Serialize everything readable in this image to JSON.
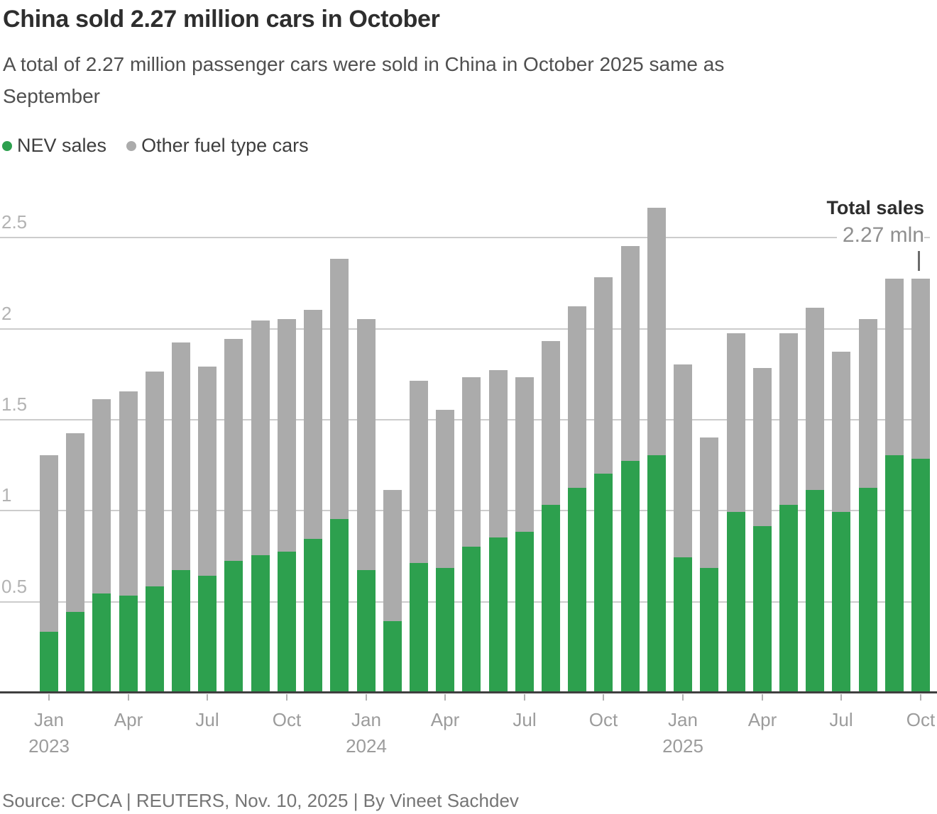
{
  "header": {
    "title": "China sold 2.27 million cars in October",
    "subtitle_lines": [
      "A total of 2.27 million passenger cars were sold in China in October 2025 same as",
      "September"
    ]
  },
  "colors": {
    "nev": "#2da04e",
    "other": "#ababab",
    "gridline": "#cccccc",
    "baseline": "#3f3f3f"
  },
  "legend": {
    "items": [
      {
        "label": "NEV sales",
        "color_key": "nev"
      },
      {
        "label": "Other fuel type cars",
        "color_key": "other"
      }
    ]
  },
  "annotation": {
    "label": "Total sales",
    "value": "2.27 mln"
  },
  "footer": {
    "source": "Source: CPCA | REUTERS, Nov. 10, 2025 | By Vineet Sachdev"
  },
  "chart_data": {
    "type": "bar",
    "stacked": true,
    "unit": "million vehicles",
    "title": "China sold 2.27 million cars in October",
    "xlabel": "",
    "ylabel": "",
    "grid": true,
    "legend_position": "top-left",
    "ylim": [
      0,
      2.71
    ],
    "y_ticks": [
      "0.5",
      "1",
      "1.5",
      "2",
      "2.5"
    ],
    "y_tick_values": [
      0.5,
      1,
      1.5,
      2,
      2.5
    ],
    "categories": [
      "Jan 2023",
      "Feb 2023",
      "Mar 2023",
      "Apr 2023",
      "May 2023",
      "Jun 2023",
      "Jul 2023",
      "Aug 2023",
      "Sep 2023",
      "Oct 2023",
      "Nov 2023",
      "Dec 2023",
      "Jan 2024",
      "Feb 2024",
      "Mar 2024",
      "Apr 2024",
      "May 2024",
      "Jun 2024",
      "Jul 2024",
      "Aug 2024",
      "Sep 2024",
      "Oct 2024",
      "Nov 2024",
      "Dec 2024",
      "Jan 2025",
      "Feb 2025",
      "Mar 2025",
      "Apr 2025",
      "May 2025",
      "Jun 2025",
      "Jul 2025",
      "Aug 2025",
      "Sep 2025",
      "Oct 2025"
    ],
    "series": [
      {
        "name": "NEV sales",
        "color": "#2da04e",
        "values": [
          0.33,
          0.44,
          0.54,
          0.53,
          0.58,
          0.67,
          0.64,
          0.72,
          0.75,
          0.77,
          0.84,
          0.95,
          0.67,
          0.39,
          0.71,
          0.68,
          0.8,
          0.85,
          0.88,
          1.03,
          1.12,
          1.2,
          1.27,
          1.3,
          0.74,
          0.68,
          0.99,
          0.91,
          1.03,
          1.11,
          0.99,
          1.12,
          1.3,
          1.28
        ]
      },
      {
        "name": "Other fuel type cars",
        "color": "#ababab",
        "values": [
          0.97,
          0.98,
          1.07,
          1.12,
          1.18,
          1.25,
          1.15,
          1.22,
          1.29,
          1.28,
          1.26,
          1.43,
          1.38,
          0.72,
          1.0,
          0.87,
          0.93,
          0.92,
          0.85,
          0.9,
          1.0,
          1.08,
          1.18,
          1.36,
          1.06,
          0.72,
          0.98,
          0.87,
          0.94,
          1.0,
          0.88,
          0.93,
          0.97,
          0.99
        ]
      }
    ],
    "totals": [
      1.3,
      1.42,
      1.61,
      1.65,
      1.76,
      1.92,
      1.79,
      1.94,
      2.04,
      2.05,
      2.1,
      2.38,
      2.05,
      1.11,
      1.71,
      1.55,
      1.73,
      1.77,
      1.73,
      1.93,
      2.12,
      2.28,
      2.45,
      2.66,
      1.8,
      1.4,
      1.97,
      1.78,
      1.97,
      2.11,
      1.87,
      2.05,
      2.27,
      2.27
    ],
    "x_ticks": [
      {
        "i": 0,
        "label": "Jan",
        "year": "2023"
      },
      {
        "i": 3,
        "label": "Apr"
      },
      {
        "i": 6,
        "label": "Jul"
      },
      {
        "i": 9,
        "label": "Oct"
      },
      {
        "i": 12,
        "label": "Jan",
        "year": "2024"
      },
      {
        "i": 15,
        "label": "Apr"
      },
      {
        "i": 18,
        "label": "Jul"
      },
      {
        "i": 21,
        "label": "Oct"
      },
      {
        "i": 24,
        "label": "Jan",
        "year": "2025"
      },
      {
        "i": 27,
        "label": "Apr"
      },
      {
        "i": 30,
        "label": "Jul"
      },
      {
        "i": 33,
        "label": "Oct"
      }
    ]
  }
}
